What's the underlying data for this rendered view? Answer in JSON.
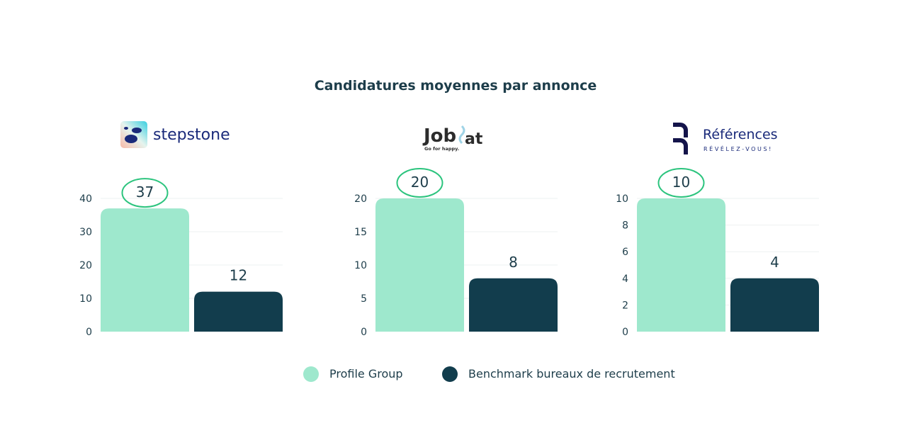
{
  "chart_data": [
    {
      "type": "bar",
      "title": "Candidatures moyennes par annonce",
      "logo": {
        "name": "stepstone",
        "text": "stepstone"
      },
      "categories": [
        "stepstone"
      ],
      "series": [
        {
          "name": "Profile Group",
          "values": [
            37
          ]
        },
        {
          "name": "Benchmark bureaux de recrutement",
          "values": [
            12
          ]
        }
      ],
      "ylim": [
        0,
        40
      ],
      "yticks": [
        0,
        10,
        20,
        30,
        40
      ],
      "grid": true,
      "highlight": "Profile Group"
    },
    {
      "type": "bar",
      "logo": {
        "name": "jobat",
        "text": "Jobat",
        "tagline": "Go for happy."
      },
      "categories": [
        "jobat"
      ],
      "series": [
        {
          "name": "Profile Group",
          "values": [
            20
          ]
        },
        {
          "name": "Benchmark bureaux de recrutement",
          "values": [
            8
          ]
        }
      ],
      "ylim": [
        0,
        20
      ],
      "yticks": [
        0,
        5,
        10,
        15,
        20
      ],
      "grid": true,
      "highlight": "Profile Group"
    },
    {
      "type": "bar",
      "logo": {
        "name": "references",
        "text": "Références",
        "tagline": "RÉVÉLEZ-VOUS!"
      },
      "categories": [
        "references"
      ],
      "series": [
        {
          "name": "Profile Group",
          "values": [
            10
          ]
        },
        {
          "name": "Benchmark bureaux de recrutement",
          "values": [
            4
          ]
        }
      ],
      "ylim": [
        0,
        10
      ],
      "yticks": [
        0,
        2,
        4,
        6,
        8,
        10
      ],
      "grid": true,
      "highlight": "Profile Group"
    }
  ],
  "title": "Candidatures moyennes par annonce",
  "legend": {
    "placement": "bottom",
    "items": [
      {
        "label": "Profile Group",
        "color": "#9ee8cd"
      },
      {
        "label": "Benchmark bureaux de recrutement",
        "color": "#123d4d"
      }
    ]
  },
  "colors": {
    "primary": "#9ee8cd",
    "benchmark": "#123d4d",
    "highlight_circle": "#2cc47e",
    "text": "#1d3d4a",
    "grid": "#eef1f1"
  }
}
